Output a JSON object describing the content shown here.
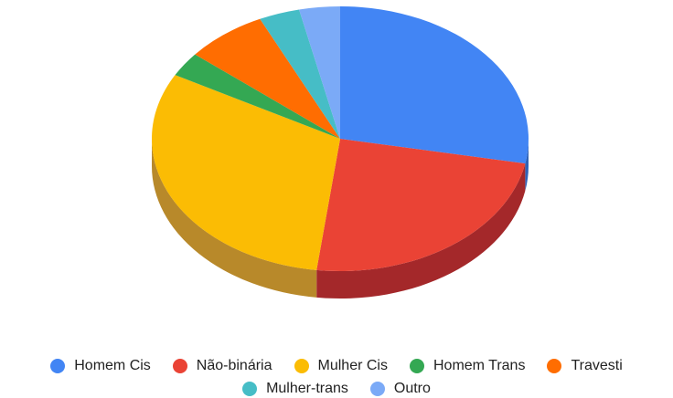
{
  "chart_data": {
    "type": "pie",
    "title": "",
    "style": "3d",
    "legend_position": "bottom",
    "categories": [
      "Homem Cis",
      "Não-binária",
      "Mulher Cis",
      "Homem Trans",
      "Travesti",
      "Mulher-trans",
      "Outro"
    ],
    "values": [
      28,
      24,
      31,
      3,
      7,
      3.5,
      3.5
    ],
    "unit": "percent (estimated)",
    "colors": [
      "#4285f4",
      "#ea4335",
      "#fbbc04",
      "#34a853",
      "#ff6d01",
      "#46bdc6",
      "#7baaf7"
    ],
    "side_colors": [
      "#2f63b8",
      "#a4282a",
      "#b8892a",
      "#247a3c",
      "#b84e00",
      "#2f8c94",
      "#5a7fbf"
    ],
    "legend_rows": [
      [
        0,
        1,
        2,
        3,
        4
      ],
      [
        5,
        6
      ]
    ]
  }
}
